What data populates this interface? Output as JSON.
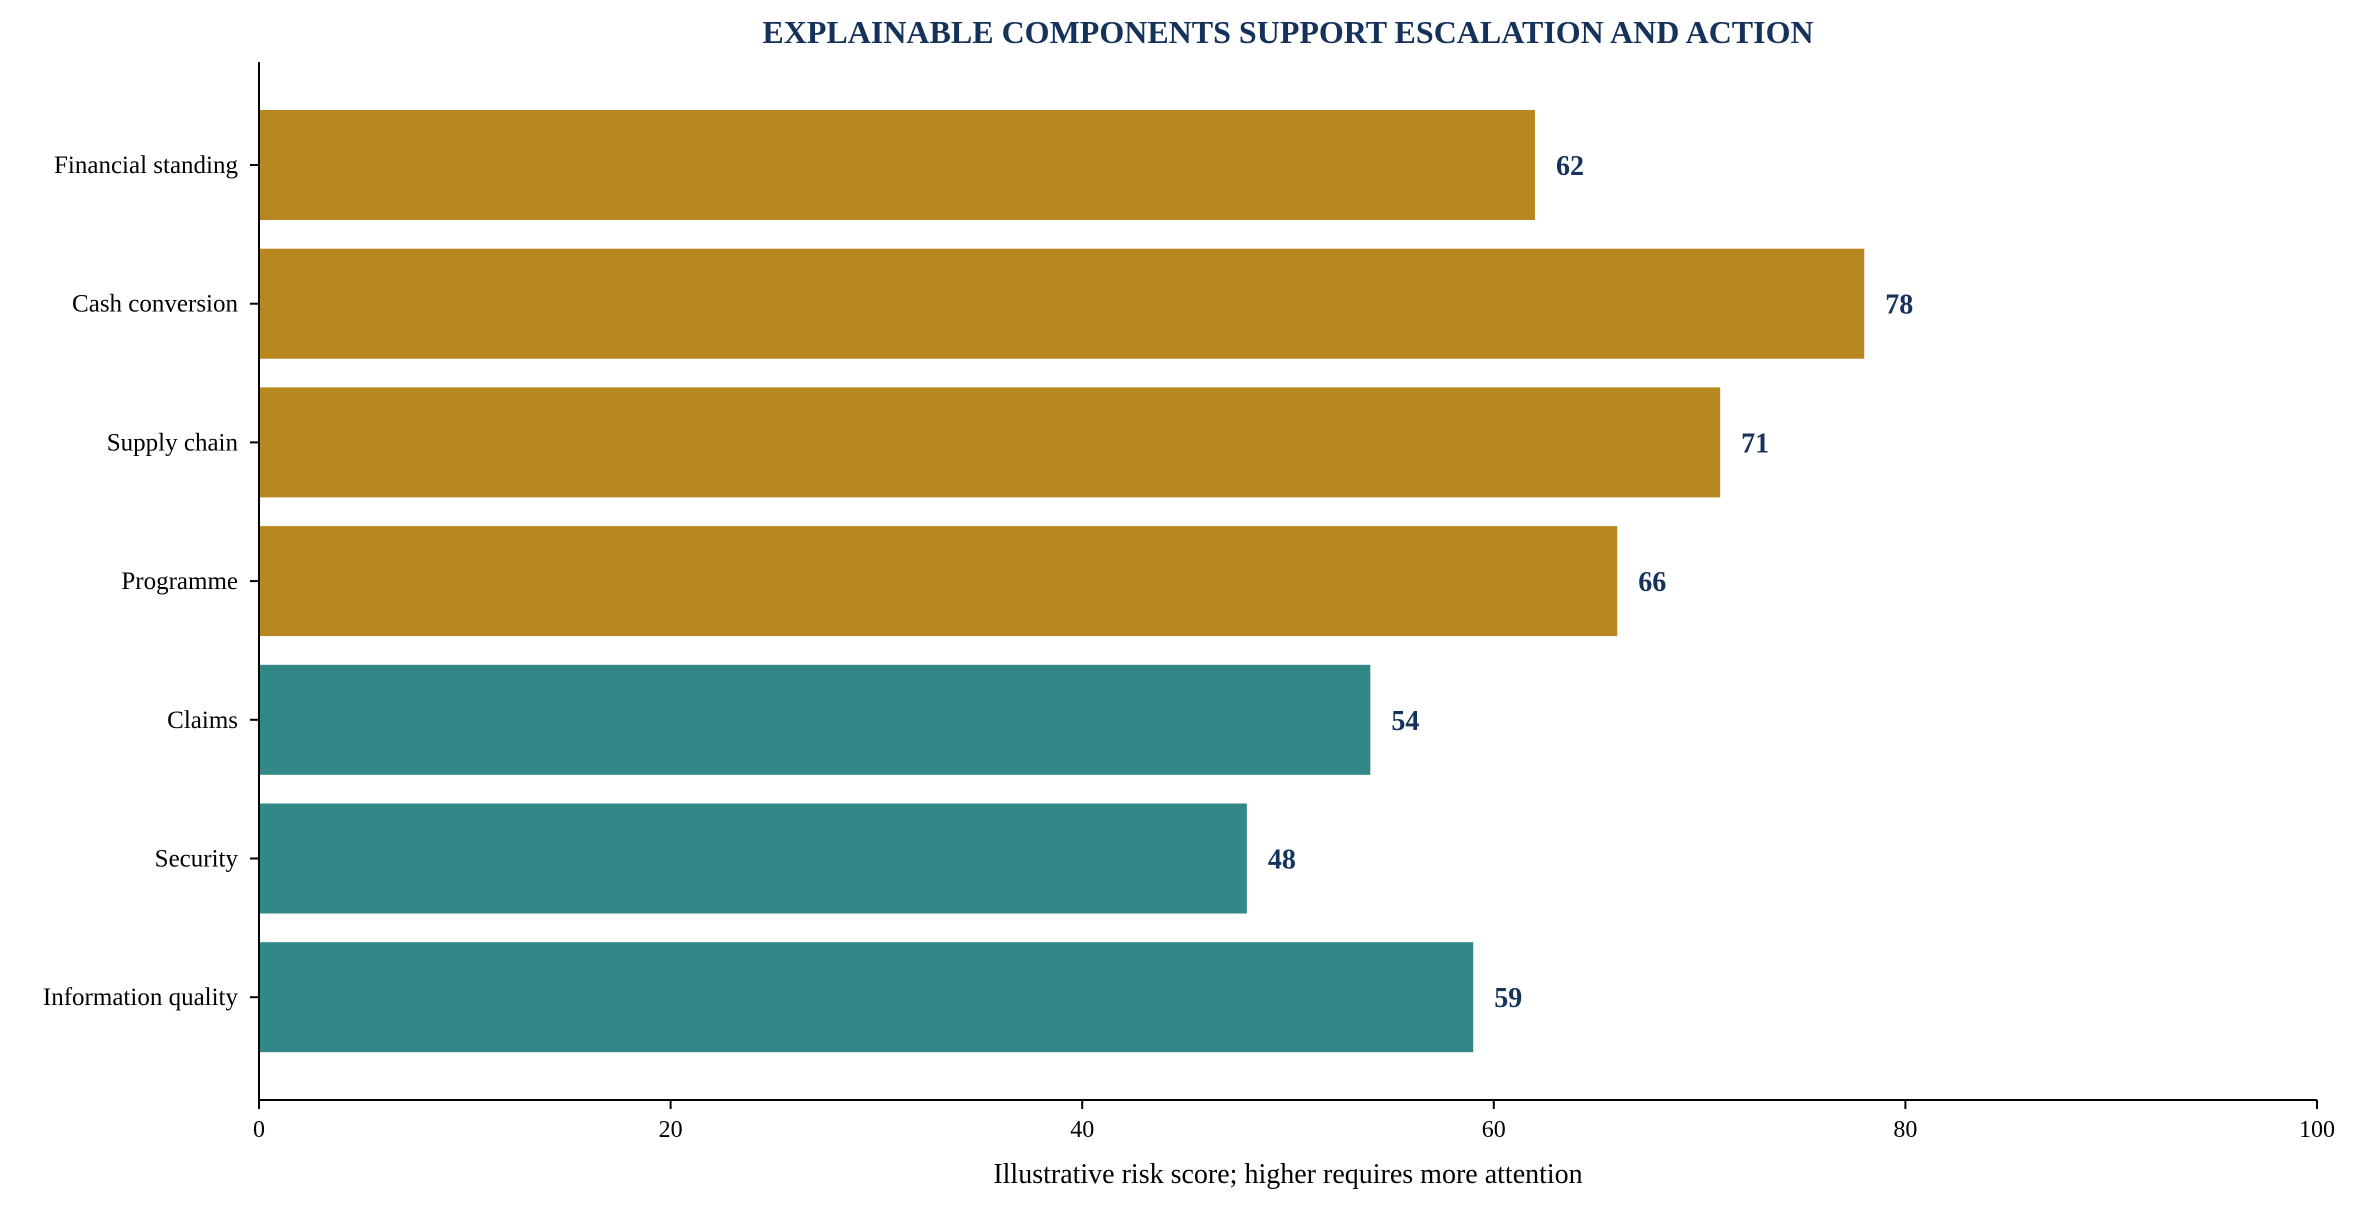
{
  "chart_data": {
    "type": "bar",
    "orientation": "horizontal",
    "title": "EXPLAINABLE COMPONENTS SUPPORT ESCALATION AND ACTION",
    "xlabel": "Illustrative risk score; higher requires more attention",
    "ylabel": "",
    "xlim": [
      0,
      100
    ],
    "xticks": [
      0,
      20,
      40,
      60,
      80,
      100
    ],
    "grid": false,
    "categories": [
      "Financial standing",
      "Cash conversion",
      "Supply chain",
      "Programme",
      "Claims",
      "Security",
      "Information quality"
    ],
    "values": [
      62,
      78,
      71,
      66,
      54,
      48,
      59
    ],
    "bar_colors": [
      "#b78820",
      "#b78820",
      "#b78820",
      "#b78820",
      "#318886",
      "#318886",
      "#318886"
    ],
    "label_color": "#14325a"
  }
}
